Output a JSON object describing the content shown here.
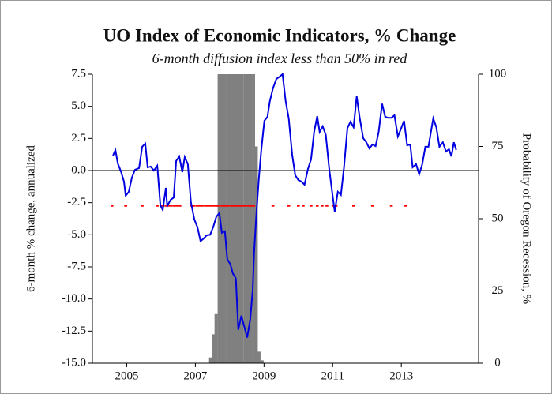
{
  "chart_data": {
    "type": "line",
    "title": "UO Index of Economic Indicators, % Change",
    "subtitle": "6-month diffusion index less than 50% in red",
    "y_label": "6-month % change, annualized",
    "y2_label": "Probability of Oregon Recession, %",
    "xlim": [
      2004,
      2015.25
    ],
    "xticks": [
      2005,
      2007,
      2009,
      2011,
      2013
    ],
    "ylim": [
      -15,
      7.5
    ],
    "yticks": [
      7.5,
      {
        "value": 5,
        "label": "5.0"
      },
      2.5,
      {
        "value": 0,
        "label": "0.0"
      },
      -2.5,
      {
        "value": -5,
        "label": "-5.0"
      },
      -7.5,
      {
        "value": -10,
        "label": "-10.0"
      },
      -12.5,
      {
        "value": -15,
        "label": "-15.0"
      }
    ],
    "y2lim": [
      0,
      100
    ],
    "y2ticks": [
      0,
      25,
      50,
      75,
      100
    ],
    "zero_line": true,
    "series": [
      {
        "type": "line",
        "color": "#0000e0",
        "x": [
          2004.6,
          2004.67,
          2004.74,
          2004.83,
          2004.92,
          2004.97,
          2005.06,
          2005.15,
          2005.24,
          2005.36,
          2005.45,
          2005.54,
          2005.61,
          2005.7,
          2005.79,
          2005.89,
          2005.98,
          2006.05,
          2006.14,
          2006.18,
          2006.28,
          2006.37,
          2006.44,
          2006.53,
          2006.62,
          2006.69,
          2006.78,
          2006.87,
          2006.97,
          2007.06,
          2007.15,
          2007.24,
          2007.33,
          2007.43,
          2007.52,
          2007.61,
          2007.7,
          2007.77,
          2007.86,
          2007.93,
          2008.02,
          2008.09,
          2008.18,
          2008.25,
          2008.34,
          2008.44,
          2008.51,
          2008.6,
          2008.67,
          2008.71,
          2008.78,
          2008.85,
          2008.92,
          2009.01,
          2009.1,
          2009.17,
          2009.26,
          2009.36,
          2009.45,
          2009.54,
          2009.63,
          2009.72,
          2009.82,
          2009.91,
          2010.0,
          2010.09,
          2010.18,
          2010.28,
          2010.37,
          2010.46,
          2010.55,
          2010.62,
          2010.71,
          2010.8,
          2010.9,
          2010.99,
          2011.06,
          2011.15,
          2011.24,
          2011.33,
          2011.43,
          2011.52,
          2011.61,
          2011.7,
          2011.79,
          2011.89,
          2011.98,
          2012.07,
          2012.16,
          2012.25,
          2012.34,
          2012.44,
          2012.53,
          2012.62,
          2012.71,
          2012.8,
          2012.9,
          2012.99,
          2013.08,
          2013.17,
          2013.26,
          2013.33,
          2013.43,
          2013.52,
          2013.61,
          2013.7,
          2013.79,
          2013.89,
          2013.93,
          2014.02,
          2014.11,
          2014.21,
          2014.3,
          2014.39,
          2014.46,
          2014.53,
          2014.6
        ],
        "values": [
          1.17,
          1.6,
          0.55,
          -0.06,
          -0.86,
          -1.96,
          -1.65,
          -0.55,
          0.06,
          0.19,
          1.85,
          2.1,
          0.25,
          0.31,
          0,
          0.37,
          -2.7,
          -3.07,
          -1.35,
          -2.76,
          -2.27,
          -2.1,
          0.74,
          1.1,
          -0.12,
          1.05,
          0.5,
          -2.46,
          -3.8,
          -4.4,
          -5.5,
          -5.3,
          -5.04,
          -5,
          -4.4,
          -3.6,
          -3.3,
          -4.85,
          -4.73,
          -6.9,
          -7.3,
          -8,
          -8.4,
          -12.4,
          -11.3,
          -12.3,
          -13,
          -11.55,
          -9.3,
          -6.4,
          -3.3,
          -0.6,
          1.6,
          3.87,
          4.18,
          5.4,
          6.4,
          7.13,
          7.3,
          7.5,
          5.4,
          4.06,
          1.23,
          -0.37,
          -0.74,
          -0.86,
          -1.1,
          0.12,
          0.86,
          3,
          4.24,
          3,
          3.44,
          2.77,
          0.12,
          -1.78,
          -3.2,
          -1.65,
          -1.9,
          0.25,
          3.31,
          3.8,
          3.37,
          5.78,
          4.06,
          2.52,
          2.2,
          1.72,
          2.03,
          1.9,
          3,
          5.2,
          4.18,
          4.1,
          4.1,
          4.3,
          2.65,
          3.25,
          3.87,
          1.97,
          2.03,
          0.25,
          0.5,
          -0.3,
          0.5,
          1.85,
          1.85,
          3.44,
          4.06,
          3.37,
          1.85,
          2.2,
          1.48,
          1.66,
          1.1,
          2.2,
          1.6
        ]
      },
      {
        "type": "bar",
        "axis": "y2",
        "color": "#808080",
        "x": [
          2007.44,
          2007.52,
          2007.6,
          2007.69,
          2007.77,
          2007.85,
          2007.94,
          2008.02,
          2008.1,
          2008.19,
          2008.27,
          2008.35,
          2008.44,
          2008.52,
          2008.6,
          2008.69,
          2008.77,
          2008.85,
          2008.94
        ],
        "values": [
          2,
          10,
          17,
          100,
          100,
          100,
          100,
          100,
          100,
          100,
          100,
          100,
          100,
          100,
          100,
          100,
          75,
          4,
          1
        ]
      },
      {
        "type": "dots",
        "color": "#ff0000",
        "x": [
          2004.57,
          2004.97,
          2005.45,
          2005.89,
          2006.05,
          2006.14,
          2006.22,
          2006.3,
          2006.39,
          2006.47,
          2006.55,
          2006.87,
          2006.95,
          2007.04,
          2007.12,
          2007.2,
          2007.29,
          2007.37,
          2007.45,
          2007.54,
          2007.62,
          2007.7,
          2007.79,
          2007.87,
          2007.95,
          2008.04,
          2008.12,
          2008.2,
          2008.29,
          2008.37,
          2008.45,
          2008.54,
          2008.62,
          2008.7,
          2009.26,
          2009.72,
          2010.0,
          2010.14,
          2010.37,
          2010.55,
          2010.69,
          2010.83,
          2011.01,
          2011.1,
          2011.61,
          2012.16,
          2012.71,
          2013.13
        ],
        "values": [
          -2.75,
          -2.75,
          -2.75,
          -2.75,
          -2.75,
          -2.75,
          -2.75,
          -2.75,
          -2.75,
          -2.75,
          -2.75,
          -2.75,
          -2.75,
          -2.75,
          -2.75,
          -2.75,
          -2.75,
          -2.75,
          -2.75,
          -2.75,
          -2.75,
          -2.75,
          -2.75,
          -2.75,
          -2.75,
          -2.75,
          -2.75,
          -2.75,
          -2.75,
          -2.75,
          -2.75,
          -2.75,
          -2.75,
          -2.75,
          -2.75,
          -2.75,
          -2.75,
          -2.75,
          -2.75,
          -2.75,
          -2.75,
          -2.75,
          -2.75,
          -2.75,
          -2.75,
          -2.75,
          -2.75,
          -2.75
        ]
      }
    ]
  }
}
